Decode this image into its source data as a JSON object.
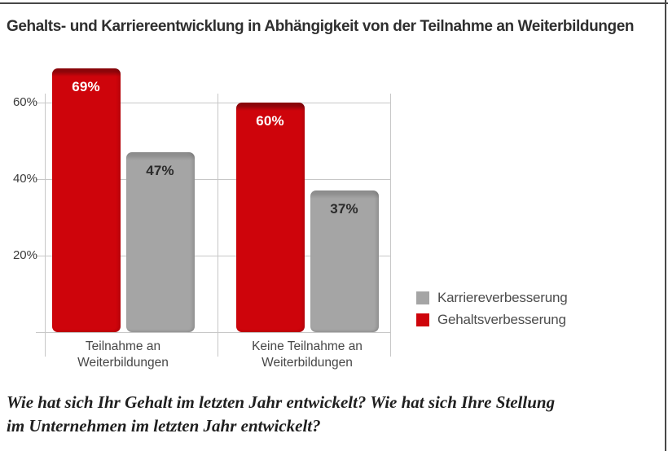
{
  "chart_data": {
    "type": "bar",
    "title": "Gehalts- und Karriereentwicklung in Abhängigkeit von der Teilnahme an Weiterbildungen",
    "categories": [
      "Teilnahme an Weiterbildungen",
      "Keine Teilnahme an Weiterbildungen"
    ],
    "category_label_lines": [
      [
        "Teilnahme an",
        "Weiterbildungen"
      ],
      [
        "Keine Teilnahme an",
        "Weiterbildungen"
      ]
    ],
    "series": [
      {
        "name": "Gehaltsverbesserung",
        "values": [
          69,
          60
        ],
        "color": "#ce040b",
        "bevel_color": "#8d050a",
        "label_color": "#ffffff"
      },
      {
        "name": "Karriereverbesserung",
        "values": [
          47,
          37
        ],
        "color": "#a5a5a5",
        "bevel_color": "#8f8f8f",
        "label_color": "#2b2b2b"
      }
    ],
    "value_label_suffix": "%",
    "y_ticks": [
      {
        "label": "60%",
        "value": 60
      },
      {
        "label": "40%",
        "value": 40
      },
      {
        "label": "20%",
        "value": 20
      }
    ],
    "ylim": [
      0,
      72
    ],
    "grid": true,
    "legend": {
      "position": "right-bottom",
      "order": [
        "Karriereverbesserung",
        "Gehaltsverbesserung"
      ]
    },
    "gridline_color": "#c7c7c7"
  },
  "footnote": {
    "lines": [
      "Wie hat sich Ihr Gehalt im letzten Jahr entwickelt? Wie hat sich Ihre Stellung",
      "im Unternehmen im letzten Jahr entwickelt?"
    ]
  }
}
